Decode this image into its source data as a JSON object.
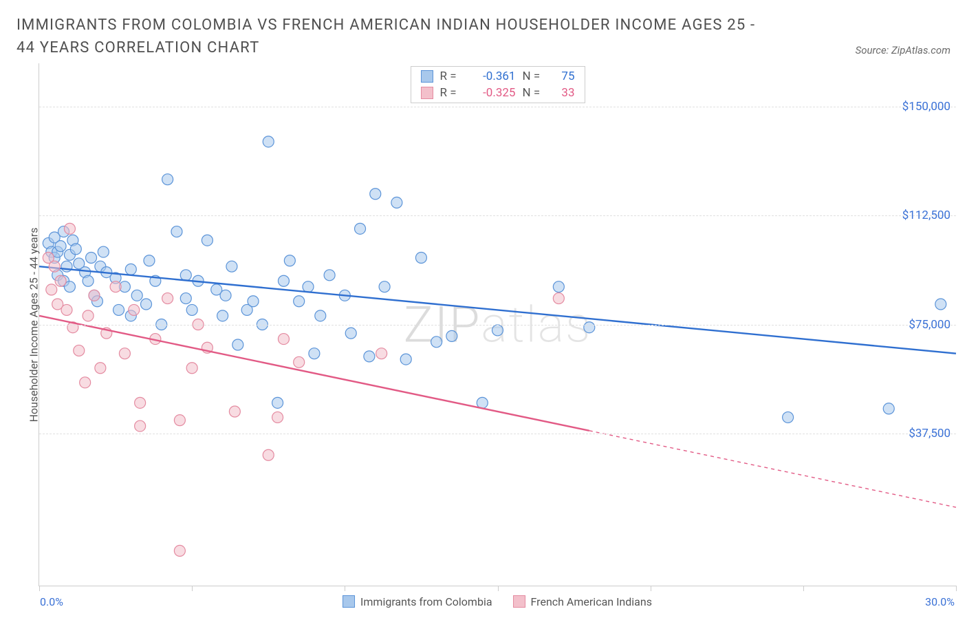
{
  "title": "IMMIGRANTS FROM COLOMBIA VS FRENCH AMERICAN INDIAN HOUSEHOLDER INCOME AGES 25 - 44 YEARS CORRELATION CHART",
  "source": "Source: ZipAtlas.com",
  "watermark": {
    "bold": "ZIP",
    "thin": "atlas"
  },
  "chart": {
    "type": "scatter",
    "background_color": "#ffffff",
    "grid_color": "#e0e0e0",
    "axis_color": "#cccccc",
    "ylabel": "Householder Income Ages 25 - 44 years",
    "ylabel_fontsize": 16,
    "xlim": [
      0,
      30
    ],
    "ylim": [
      -15000,
      165000
    ],
    "x_ticks": [
      0,
      5,
      10,
      15,
      20,
      25,
      30
    ],
    "x_tick_labels": {
      "min": "0.0%",
      "max": "30.0%"
    },
    "y_gridlines": [
      37500,
      75000,
      112500,
      150000
    ],
    "y_tick_labels": [
      "$37,500",
      "$75,000",
      "$112,500",
      "$150,000"
    ],
    "y_tick_color": "#3a71d6",
    "x_tick_color": "#3a71d6",
    "series": [
      {
        "name": "Immigrants from Colombia",
        "color_fill": "#a8c8ec",
        "color_stroke": "#5a93d8",
        "line_color": "#2f6fd0",
        "marker_radius": 8,
        "fill_opacity": 0.55,
        "R": "-0.361",
        "N": "75",
        "trend": {
          "x1": 0,
          "y1": 95000,
          "x2": 30,
          "y2": 65000,
          "dash_from_x": null
        },
        "points": [
          [
            0.3,
            103000
          ],
          [
            0.4,
            100000
          ],
          [
            0.5,
            98000
          ],
          [
            0.5,
            105000
          ],
          [
            0.6,
            92000
          ],
          [
            0.6,
            100000
          ],
          [
            0.7,
            102000
          ],
          [
            0.8,
            90000
          ],
          [
            0.8,
            107000
          ],
          [
            0.9,
            95000
          ],
          [
            1.0,
            88000
          ],
          [
            1.0,
            99000
          ],
          [
            1.1,
            104000
          ],
          [
            1.2,
            101000
          ],
          [
            1.3,
            96000
          ],
          [
            1.5,
            93000
          ],
          [
            1.6,
            90000
          ],
          [
            1.7,
            98000
          ],
          [
            1.8,
            85000
          ],
          [
            1.9,
            83000
          ],
          [
            2.0,
            95000
          ],
          [
            2.1,
            100000
          ],
          [
            2.2,
            93000
          ],
          [
            2.5,
            91000
          ],
          [
            2.6,
            80000
          ],
          [
            2.8,
            88000
          ],
          [
            3.0,
            78000
          ],
          [
            3.0,
            94000
          ],
          [
            3.2,
            85000
          ],
          [
            3.5,
            82000
          ],
          [
            3.6,
            97000
          ],
          [
            3.8,
            90000
          ],
          [
            4.0,
            75000
          ],
          [
            4.2,
            125000
          ],
          [
            4.5,
            107000
          ],
          [
            4.8,
            84000
          ],
          [
            4.8,
            92000
          ],
          [
            5.0,
            80000
          ],
          [
            5.2,
            90000
          ],
          [
            5.5,
            104000
          ],
          [
            5.8,
            87000
          ],
          [
            6.0,
            78000
          ],
          [
            6.1,
            85000
          ],
          [
            6.3,
            95000
          ],
          [
            6.5,
            68000
          ],
          [
            6.8,
            80000
          ],
          [
            7.0,
            83000
          ],
          [
            7.3,
            75000
          ],
          [
            7.5,
            138000
          ],
          [
            7.8,
            48000
          ],
          [
            8.0,
            90000
          ],
          [
            8.2,
            97000
          ],
          [
            8.5,
            83000
          ],
          [
            8.8,
            88000
          ],
          [
            9.0,
            65000
          ],
          [
            9.2,
            78000
          ],
          [
            9.5,
            92000
          ],
          [
            10.0,
            85000
          ],
          [
            10.2,
            72000
          ],
          [
            10.5,
            108000
          ],
          [
            10.8,
            64000
          ],
          [
            11.0,
            120000
          ],
          [
            11.3,
            88000
          ],
          [
            11.7,
            117000
          ],
          [
            12.0,
            63000
          ],
          [
            12.5,
            98000
          ],
          [
            13.0,
            69000
          ],
          [
            13.5,
            71000
          ],
          [
            14.5,
            48000
          ],
          [
            15.0,
            73000
          ],
          [
            17.0,
            88000
          ],
          [
            18.0,
            74000
          ],
          [
            24.5,
            43000
          ],
          [
            27.8,
            46000
          ],
          [
            29.5,
            82000
          ]
        ]
      },
      {
        "name": "French American Indians",
        "color_fill": "#f3c0cb",
        "color_stroke": "#e48aa0",
        "line_color": "#e25a85",
        "marker_radius": 8,
        "fill_opacity": 0.55,
        "R": "-0.325",
        "N": "33",
        "trend": {
          "x1": 0,
          "y1": 78000,
          "x2": 30,
          "y2": 12000,
          "dash_from_x": 18
        },
        "points": [
          [
            0.3,
            98000
          ],
          [
            0.4,
            87000
          ],
          [
            0.5,
            95000
          ],
          [
            0.6,
            82000
          ],
          [
            0.7,
            90000
          ],
          [
            0.9,
            80000
          ],
          [
            1.0,
            108000
          ],
          [
            1.1,
            74000
          ],
          [
            1.3,
            66000
          ],
          [
            1.5,
            55000
          ],
          [
            1.6,
            78000
          ],
          [
            1.8,
            85000
          ],
          [
            2.0,
            60000
          ],
          [
            2.2,
            72000
          ],
          [
            2.5,
            88000
          ],
          [
            2.8,
            65000
          ],
          [
            3.1,
            80000
          ],
          [
            3.3,
            48000
          ],
          [
            3.3,
            40000
          ],
          [
            3.8,
            70000
          ],
          [
            4.2,
            84000
          ],
          [
            4.6,
            42000
          ],
          [
            4.6,
            -3000
          ],
          [
            5.0,
            60000
          ],
          [
            5.2,
            75000
          ],
          [
            5.5,
            67000
          ],
          [
            6.4,
            45000
          ],
          [
            7.5,
            30000
          ],
          [
            7.8,
            43000
          ],
          [
            8.0,
            70000
          ],
          [
            8.5,
            62000
          ],
          [
            11.2,
            65000
          ],
          [
            17.0,
            84000
          ]
        ]
      }
    ],
    "x_legend": [
      {
        "label": "Immigrants from Colombia",
        "fill": "#a8c8ec",
        "stroke": "#5a93d8"
      },
      {
        "label": "French American Indians",
        "fill": "#f3c0cb",
        "stroke": "#e48aa0"
      }
    ]
  }
}
